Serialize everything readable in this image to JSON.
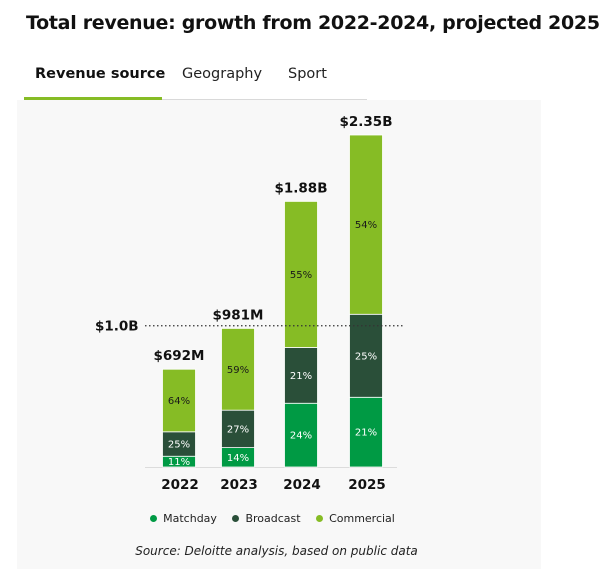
{
  "title": "Total revenue: growth from 2022-2024, projected 2025",
  "tabs": [
    {
      "label": "Revenue source",
      "active": true
    },
    {
      "label": "Geography",
      "active": false
    },
    {
      "label": "Sport",
      "active": false
    }
  ],
  "colors": {
    "matchday": "#009a44",
    "broadcast": "#2a4f39",
    "commercial": "#86bc25",
    "tab_accent": "#86bc25"
  },
  "chart_data": {
    "type": "bar",
    "stacked": true,
    "categories": [
      "2022",
      "2023",
      "2024",
      "2025"
    ],
    "totals": [
      692,
      981,
      1880,
      2350
    ],
    "total_labels": [
      "$692M",
      "$981M",
      "$1.88B",
      "$2.35B"
    ],
    "unit": "$M",
    "series": [
      {
        "name": "Matchday",
        "values_pct": [
          11,
          14,
          24,
          21
        ],
        "labels": [
          "11%",
          "14%",
          "24%",
          "21%"
        ],
        "color_key": "matchday"
      },
      {
        "name": "Broadcast",
        "values_pct": [
          25,
          27,
          21,
          25
        ],
        "labels": [
          "25%",
          "27%",
          "21%",
          "25%"
        ],
        "color_key": "broadcast"
      },
      {
        "name": "Commercial",
        "values_pct": [
          64,
          59,
          55,
          54
        ],
        "labels": [
          "64%",
          "59%",
          "55%",
          "54%"
        ],
        "color_key": "commercial"
      }
    ],
    "reference_line": {
      "value": 1000,
      "label": "$1.0B",
      "style": "dotted"
    },
    "ylim": [
      0,
      2350
    ],
    "legend_position": "bottom-center",
    "grid": false
  },
  "source": "Source: Deloitte analysis, based on public data"
}
